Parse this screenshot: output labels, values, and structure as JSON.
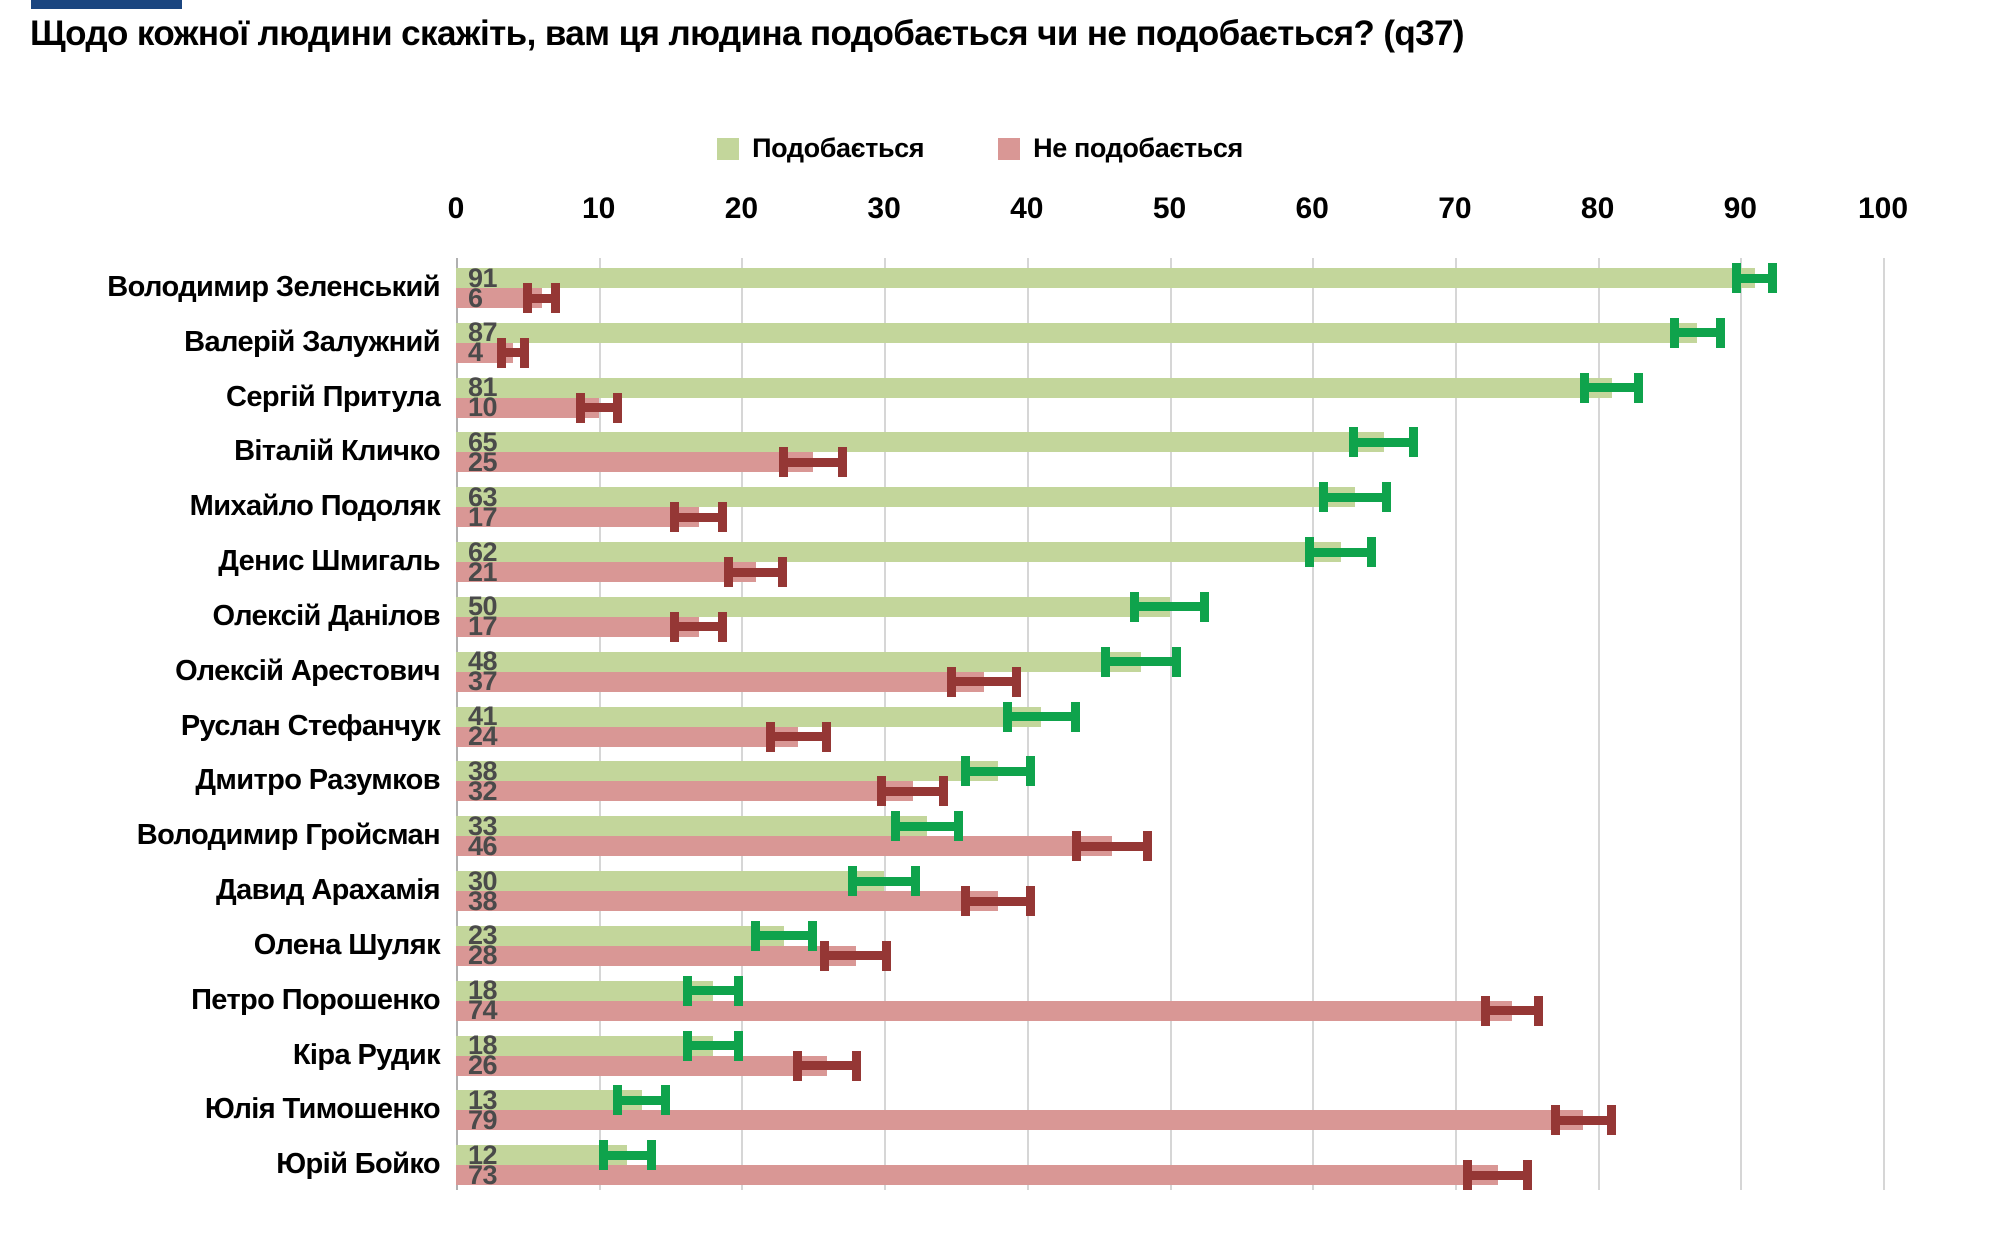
{
  "title": "Щодо кожної людини скажіть, вам ця людина подобається чи не подобається? (q37)",
  "legend": [
    {
      "label": "Подобається",
      "color": "#c3d69b"
    },
    {
      "label": "Не подобається",
      "color": "#d99795"
    }
  ],
  "axis": {
    "min": 0,
    "max": 100,
    "ticks": [
      0,
      10,
      20,
      30,
      40,
      50,
      60,
      70,
      80,
      90,
      100
    ]
  },
  "colors": {
    "like_bar": "#c3d69b",
    "dislike_bar": "#d99795",
    "like_error": "#0fa34c",
    "dislike_error": "#953735",
    "gridline": "#d6d6d6",
    "axis_line": "#b0b0b0",
    "value_label": "#4a4a4a",
    "brand_bar": "#1b4680"
  },
  "chart_data": {
    "type": "bar",
    "orientation": "horizontal",
    "title": "Щодо кожної людини скажіть, вам ця людина подобається чи не подобається? (q37)",
    "xlabel": "",
    "ylabel": "",
    "xlim": [
      0,
      100
    ],
    "grid": true,
    "legend_position": "top",
    "categories": [
      "Володимир Зеленський",
      "Валерій Залужний",
      "Сергій Притула",
      "Віталій Кличко",
      "Михайло Подоляк",
      "Денис Шмигаль",
      "Олексій Данілов",
      "Олексій Арестович",
      "Руслан Стефанчук",
      "Дмитро Разумков",
      "Володимир Гройсман",
      "Давид Арахамія",
      "Олена Шуляк",
      "Петро Порошенко",
      "Кіра Рудик",
      "Юлія Тимошенко",
      "Юрій Бойко"
    ],
    "series": [
      {
        "name": "Подобається",
        "color": "#c3d69b",
        "error_color": "#0fa34c",
        "values": [
          91,
          87,
          81,
          65,
          63,
          62,
          50,
          48,
          41,
          38,
          33,
          30,
          23,
          18,
          18,
          13,
          12
        ],
        "error_margin": [
          1.6,
          1.9,
          2.2,
          2.4,
          2.5,
          2.5,
          2.8,
          2.8,
          2.7,
          2.6,
          2.5,
          2.5,
          2.3,
          2.1,
          2.1,
          2.0,
          2.0
        ]
      },
      {
        "name": "Не подобається",
        "color": "#d99795",
        "error_color": "#953735",
        "values": [
          6,
          4,
          10,
          25,
          17,
          21,
          17,
          37,
          24,
          32,
          46,
          38,
          28,
          74,
          26,
          79,
          73
        ],
        "error_margin": [
          1.3,
          1.1,
          1.6,
          2.4,
          2.0,
          2.2,
          2.0,
          2.6,
          2.3,
          2.5,
          2.8,
          2.6,
          2.5,
          2.2,
          2.4,
          2.3,
          2.4
        ]
      }
    ]
  }
}
